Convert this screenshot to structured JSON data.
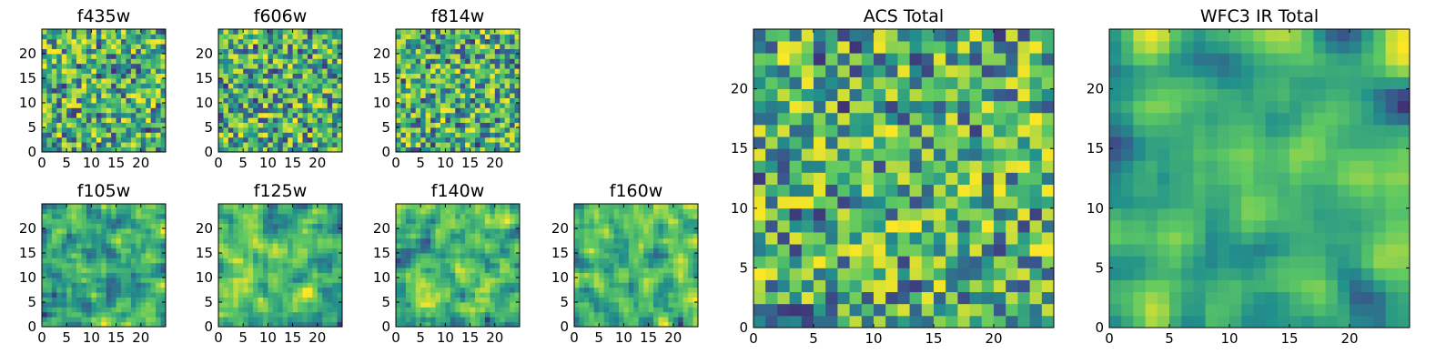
{
  "figure": {
    "colormap": [
      "#440154",
      "#3b528b",
      "#21918c",
      "#5ec962",
      "#fde725"
    ],
    "cell_value_range": [
      0,
      1
    ]
  },
  "chart_data": [
    {
      "type": "heatmap",
      "title": "f435w",
      "size": 25,
      "xlim": [
        0,
        25
      ],
      "ylim": [
        0,
        25
      ],
      "xticks": [
        0,
        5,
        10,
        15,
        20
      ],
      "yticks": [
        0,
        5,
        10,
        15,
        20
      ],
      "seed": 11,
      "smooth": 0,
      "grid": false,
      "note_values": "per-pixel flux, visually approximated"
    },
    {
      "type": "heatmap",
      "title": "f606w",
      "size": 25,
      "xlim": [
        0,
        25
      ],
      "ylim": [
        0,
        25
      ],
      "xticks": [
        0,
        5,
        10,
        15,
        20
      ],
      "yticks": [
        0,
        5,
        10,
        15,
        20
      ],
      "seed": 23,
      "smooth": 0,
      "grid": false
    },
    {
      "type": "heatmap",
      "title": "f814w",
      "size": 25,
      "xlim": [
        0,
        25
      ],
      "ylim": [
        0,
        25
      ],
      "xticks": [
        0,
        5,
        10,
        15,
        20
      ],
      "yticks": [
        0,
        5,
        10,
        15,
        20
      ],
      "seed": 37,
      "smooth": 0,
      "grid": false
    },
    {
      "type": "heatmap",
      "title": "f105w",
      "size": 25,
      "xlim": [
        0,
        25
      ],
      "ylim": [
        0,
        25
      ],
      "xticks": [
        0,
        5,
        10,
        15,
        20
      ],
      "yticks": [
        0,
        5,
        10,
        15,
        20
      ],
      "seed": 41,
      "smooth": 1,
      "grid": false
    },
    {
      "type": "heatmap",
      "title": "f125w",
      "size": 25,
      "xlim": [
        0,
        25
      ],
      "ylim": [
        0,
        25
      ],
      "xticks": [
        0,
        5,
        10,
        15,
        20
      ],
      "yticks": [
        0,
        5,
        10,
        15,
        20
      ],
      "seed": 53,
      "smooth": 1,
      "grid": false
    },
    {
      "type": "heatmap",
      "title": "f140w",
      "size": 25,
      "xlim": [
        0,
        25
      ],
      "ylim": [
        0,
        25
      ],
      "xticks": [
        0,
        5,
        10,
        15,
        20
      ],
      "yticks": [
        0,
        5,
        10,
        15,
        20
      ],
      "seed": 67,
      "smooth": 1,
      "grid": false
    },
    {
      "type": "heatmap",
      "title": "f160w",
      "size": 25,
      "xlim": [
        0,
        25
      ],
      "ylim": [
        0,
        25
      ],
      "xticks": [
        0,
        5,
        10,
        15,
        20
      ],
      "yticks": [
        0,
        5,
        10,
        15,
        20
      ],
      "seed": 79,
      "smooth": 1,
      "grid": false
    },
    {
      "type": "heatmap",
      "title": "ACS Total",
      "size": 25,
      "xlim": [
        0,
        25
      ],
      "ylim": [
        0,
        25
      ],
      "xticks": [
        0,
        5,
        10,
        15,
        20
      ],
      "yticks": [
        0,
        5,
        10,
        15,
        20
      ],
      "seed": 97,
      "smooth": 0,
      "grid": false
    },
    {
      "type": "heatmap",
      "title": "WFC3 IR Total",
      "size": 25,
      "xlim": [
        0,
        25
      ],
      "ylim": [
        0,
        25
      ],
      "xticks": [
        0,
        5,
        10,
        15,
        20
      ],
      "yticks": [
        0,
        5,
        10,
        15,
        20
      ],
      "seed": 113,
      "smooth": 2,
      "grid": false
    }
  ]
}
